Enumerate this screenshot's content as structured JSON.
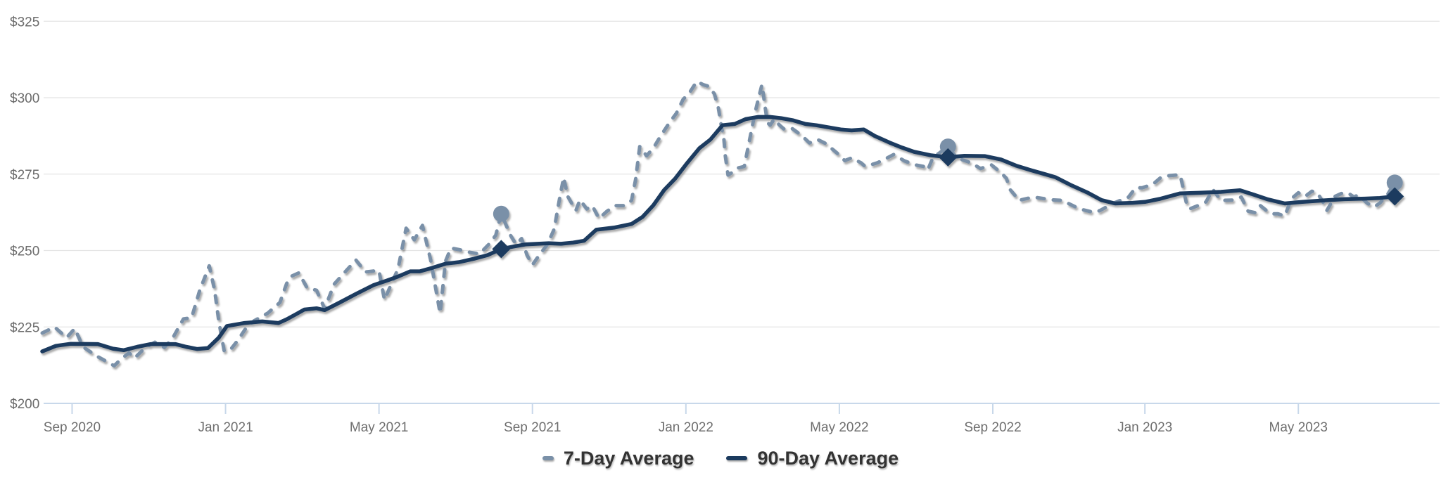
{
  "chart_data": {
    "type": "line",
    "title": "",
    "grid": true,
    "legend_position": "bottom",
    "colors": {
      "seven_day": "#7a90a8",
      "ninety_day": "#1b3a5e",
      "gridline": "#e4e4e4",
      "axis": "#c8d8ea",
      "axis_label": "#6b6b6b",
      "legend_text": "#333333"
    },
    "y_axis": {
      "min": 200,
      "max": 325,
      "step": 25,
      "tick_prefix": "$",
      "labels": [
        "$200",
        "$225",
        "$250",
        "$275",
        "$300",
        "$325"
      ]
    },
    "x_axis": {
      "tick_labels": [
        "Sep 2020",
        "Jan 2021",
        "May 2021",
        "Sep 2021",
        "Jan 2022",
        "May 2022",
        "Sep 2022",
        "Jan 2023",
        "May 2023"
      ],
      "tick_positions": [
        0.022,
        0.135,
        0.248,
        0.361,
        0.474,
        0.587,
        0.7,
        0.812,
        0.925
      ]
    },
    "series": [
      {
        "name": "7-Day Average",
        "style": "dashed",
        "color": "#7a90a8",
        "points": [
          [
            0.0,
            223
          ],
          [
            0.009,
            225
          ],
          [
            0.018,
            221.5
          ],
          [
            0.024,
            224.5
          ],
          [
            0.03,
            218.5
          ],
          [
            0.04,
            215.5
          ],
          [
            0.047,
            213.8
          ],
          [
            0.053,
            212.3
          ],
          [
            0.058,
            214.5
          ],
          [
            0.064,
            216.5
          ],
          [
            0.068,
            214.8
          ],
          [
            0.076,
            218.3
          ],
          [
            0.083,
            220
          ],
          [
            0.09,
            218.3
          ],
          [
            0.096,
            221.3
          ],
          [
            0.104,
            227.6
          ],
          [
            0.11,
            228
          ],
          [
            0.116,
            237
          ],
          [
            0.123,
            245
          ],
          [
            0.127,
            237
          ],
          [
            0.13,
            227
          ],
          [
            0.134,
            217.2
          ],
          [
            0.138,
            217.2
          ],
          [
            0.144,
            220.6
          ],
          [
            0.15,
            224.6
          ],
          [
            0.156,
            227
          ],
          [
            0.166,
            229.5
          ],
          [
            0.175,
            233
          ],
          [
            0.18,
            239.2
          ],
          [
            0.183,
            241.5
          ],
          [
            0.189,
            242.7
          ],
          [
            0.195,
            237.8
          ],
          [
            0.202,
            237
          ],
          [
            0.208,
            231
          ],
          [
            0.215,
            239
          ],
          [
            0.223,
            243
          ],
          [
            0.231,
            246.9
          ],
          [
            0.238,
            243
          ],
          [
            0.248,
            243.5
          ],
          [
            0.252,
            233.9
          ],
          [
            0.262,
            244
          ],
          [
            0.268,
            257.3
          ],
          [
            0.274,
            253.5
          ],
          [
            0.28,
            258.2
          ],
          [
            0.286,
            247
          ],
          [
            0.293,
            229.5
          ],
          [
            0.297,
            246.5
          ],
          [
            0.301,
            250.8
          ],
          [
            0.307,
            250.3
          ],
          [
            0.315,
            249.4
          ],
          [
            0.322,
            248.9
          ],
          [
            0.329,
            252.1
          ],
          [
            0.334,
            255
          ],
          [
            0.338,
            262
          ],
          [
            0.342,
            257.9
          ],
          [
            0.345,
            254.9
          ],
          [
            0.349,
            252
          ],
          [
            0.353,
            253.9
          ],
          [
            0.357,
            248.5
          ],
          [
            0.361,
            245.3
          ],
          [
            0.366,
            248.5
          ],
          [
            0.372,
            252
          ],
          [
            0.377,
            257
          ],
          [
            0.381,
            267
          ],
          [
            0.384,
            273.9
          ],
          [
            0.387,
            267.7
          ],
          [
            0.39,
            265.4
          ],
          [
            0.393,
            263.1
          ],
          [
            0.396,
            266.6
          ],
          [
            0.401,
            263.6
          ],
          [
            0.405,
            264.7
          ],
          [
            0.41,
            260.5
          ],
          [
            0.416,
            262.9
          ],
          [
            0.422,
            264.7
          ],
          [
            0.429,
            264.7
          ],
          [
            0.434,
            266.4
          ],
          [
            0.437,
            273.3
          ],
          [
            0.44,
            284
          ],
          [
            0.445,
            281
          ],
          [
            0.45,
            283.5
          ],
          [
            0.456,
            287.9
          ],
          [
            0.462,
            291.9
          ],
          [
            0.467,
            294.9
          ],
          [
            0.472,
            299.5
          ],
          [
            0.476,
            301.2
          ],
          [
            0.482,
            305.3
          ],
          [
            0.487,
            304.2
          ],
          [
            0.491,
            303.7
          ],
          [
            0.495,
            301.2
          ],
          [
            0.498,
            296.5
          ],
          [
            0.5,
            291
          ],
          [
            0.502,
            286.3
          ],
          [
            0.503,
            281
          ],
          [
            0.505,
            274.7
          ],
          [
            0.508,
            275.5
          ],
          [
            0.512,
            277
          ],
          [
            0.517,
            277.5
          ],
          [
            0.522,
            288.7
          ],
          [
            0.525,
            295.3
          ],
          [
            0.528,
            300.7
          ],
          [
            0.53,
            304.2
          ],
          [
            0.533,
            294.9
          ],
          [
            0.534,
            291.9
          ],
          [
            0.536,
            291
          ],
          [
            0.539,
            293
          ],
          [
            0.543,
            291
          ],
          [
            0.546,
            289.8
          ],
          [
            0.551,
            290.3
          ],
          [
            0.556,
            288.7
          ],
          [
            0.56,
            287.3
          ],
          [
            0.565,
            285.2
          ],
          [
            0.571,
            286.3
          ],
          [
            0.577,
            285
          ],
          [
            0.581,
            283.5
          ],
          [
            0.586,
            281.6
          ],
          [
            0.591,
            279.4
          ],
          [
            0.596,
            280.3
          ],
          [
            0.603,
            278.7
          ],
          [
            0.606,
            277.5
          ],
          [
            0.615,
            278.7
          ],
          [
            0.621,
            280
          ],
          [
            0.627,
            281.4
          ],
          [
            0.635,
            279.3
          ],
          [
            0.643,
            278
          ],
          [
            0.649,
            277.5
          ],
          [
            0.652,
            276.3
          ],
          [
            0.656,
            280.5
          ],
          [
            0.661,
            282
          ],
          [
            0.667,
            284
          ],
          [
            0.673,
            280.5
          ],
          [
            0.677,
            279.8
          ],
          [
            0.684,
            278.7
          ],
          [
            0.691,
            276.8
          ],
          [
            0.699,
            278
          ],
          [
            0.706,
            275.5
          ],
          [
            0.71,
            273.6
          ],
          [
            0.713,
            269.8
          ],
          [
            0.717,
            267.7
          ],
          [
            0.719,
            266.4
          ],
          [
            0.73,
            267.5
          ],
          [
            0.743,
            266.6
          ],
          [
            0.751,
            266.4
          ],
          [
            0.764,
            263.6
          ],
          [
            0.775,
            262.4
          ],
          [
            0.779,
            263.1
          ],
          [
            0.788,
            265.3
          ],
          [
            0.8,
            267.5
          ],
          [
            0.805,
            270.5
          ],
          [
            0.81,
            270.5
          ],
          [
            0.818,
            271.7
          ],
          [
            0.824,
            274
          ],
          [
            0.83,
            274.5
          ],
          [
            0.838,
            274.8
          ],
          [
            0.843,
            264.7
          ],
          [
            0.845,
            263.6
          ],
          [
            0.851,
            264.7
          ],
          [
            0.857,
            265.9
          ],
          [
            0.862,
            270
          ],
          [
            0.868,
            266.4
          ],
          [
            0.877,
            266.5
          ],
          [
            0.883,
            267.5
          ],
          [
            0.888,
            262.9
          ],
          [
            0.893,
            262.4
          ],
          [
            0.897,
            264.7
          ],
          [
            0.902,
            262.9
          ],
          [
            0.906,
            262
          ],
          [
            0.91,
            262
          ],
          [
            0.915,
            261.3
          ],
          [
            0.92,
            267
          ],
          [
            0.925,
            268.9
          ],
          [
            0.93,
            267.7
          ],
          [
            0.935,
            269.4
          ],
          [
            0.939,
            268.9
          ],
          [
            0.944,
            265.2
          ],
          [
            0.946,
            263.1
          ],
          [
            0.952,
            267.7
          ],
          [
            0.958,
            268.9
          ],
          [
            0.962,
            268.7
          ],
          [
            0.966,
            267.5
          ],
          [
            0.969,
            268.2
          ],
          [
            0.976,
            265.4
          ],
          [
            0.981,
            264.3
          ],
          [
            0.985,
            265.5
          ],
          [
            0.991,
            268.5
          ],
          [
            0.996,
            272.2
          ]
        ]
      },
      {
        "name": "90-Day Average",
        "style": "solid",
        "color": "#1b3a5e",
        "points": [
          [
            0.0,
            217
          ],
          [
            0.01,
            218.8
          ],
          [
            0.021,
            219.5
          ],
          [
            0.041,
            219.4
          ],
          [
            0.052,
            217.9
          ],
          [
            0.06,
            217.4
          ],
          [
            0.07,
            218.5
          ],
          [
            0.08,
            219.4
          ],
          [
            0.098,
            219.4
          ],
          [
            0.106,
            218.5
          ],
          [
            0.114,
            217.8
          ],
          [
            0.122,
            218.1
          ],
          [
            0.13,
            221.5
          ],
          [
            0.136,
            225.3
          ],
          [
            0.149,
            226.3
          ],
          [
            0.162,
            226.8
          ],
          [
            0.174,
            226.3
          ],
          [
            0.18,
            227.5
          ],
          [
            0.187,
            229.2
          ],
          [
            0.193,
            230.7
          ],
          [
            0.202,
            231.1
          ],
          [
            0.208,
            230.5
          ],
          [
            0.219,
            233
          ],
          [
            0.231,
            235.8
          ],
          [
            0.244,
            238.7
          ],
          [
            0.254,
            240.2
          ],
          [
            0.262,
            241.5
          ],
          [
            0.271,
            243.2
          ],
          [
            0.278,
            243.2
          ],
          [
            0.287,
            244.3
          ],
          [
            0.297,
            245.7
          ],
          [
            0.307,
            246.2
          ],
          [
            0.318,
            247.3
          ],
          [
            0.328,
            248.5
          ],
          [
            0.338,
            250.5
          ],
          [
            0.347,
            251.3
          ],
          [
            0.356,
            252
          ],
          [
            0.365,
            252.2
          ],
          [
            0.373,
            252.4
          ],
          [
            0.382,
            252.2
          ],
          [
            0.391,
            252.6
          ],
          [
            0.399,
            253.2
          ],
          [
            0.408,
            256.8
          ],
          [
            0.421,
            257.5
          ],
          [
            0.434,
            258.7
          ],
          [
            0.442,
            261
          ],
          [
            0.45,
            264.8
          ],
          [
            0.458,
            269.8
          ],
          [
            0.466,
            273.5
          ],
          [
            0.475,
            278.7
          ],
          [
            0.484,
            283.5
          ],
          [
            0.492,
            286.3
          ],
          [
            0.501,
            291
          ],
          [
            0.51,
            291.4
          ],
          [
            0.518,
            293
          ],
          [
            0.527,
            293.7
          ],
          [
            0.536,
            293.7
          ],
          [
            0.544,
            293.3
          ],
          [
            0.553,
            292.6
          ],
          [
            0.562,
            291.4
          ],
          [
            0.57,
            291
          ],
          [
            0.579,
            290.3
          ],
          [
            0.588,
            289.6
          ],
          [
            0.596,
            289.3
          ],
          [
            0.605,
            289.6
          ],
          [
            0.613,
            287.5
          ],
          [
            0.624,
            285.3
          ],
          [
            0.633,
            283.7
          ],
          [
            0.642,
            282.3
          ],
          [
            0.654,
            281.2
          ],
          [
            0.667,
            280.5
          ],
          [
            0.679,
            281
          ],
          [
            0.694,
            280.9
          ],
          [
            0.706,
            279.8
          ],
          [
            0.717,
            277.8
          ],
          [
            0.728,
            276.3
          ],
          [
            0.739,
            274.9
          ],
          [
            0.746,
            274
          ],
          [
            0.758,
            271.3
          ],
          [
            0.77,
            268.9
          ],
          [
            0.78,
            266.5
          ],
          [
            0.79,
            265.4
          ],
          [
            0.803,
            265.6
          ],
          [
            0.812,
            265.9
          ],
          [
            0.823,
            266.9
          ],
          [
            0.838,
            268.7
          ],
          [
            0.853,
            268.9
          ],
          [
            0.868,
            269.2
          ],
          [
            0.882,
            269.7
          ],
          [
            0.892,
            268.3
          ],
          [
            0.902,
            266.8
          ],
          [
            0.915,
            265.4
          ],
          [
            0.928,
            265.9
          ],
          [
            0.943,
            266.4
          ],
          [
            0.959,
            266.8
          ],
          [
            0.974,
            267
          ],
          [
            0.985,
            267.2
          ],
          [
            0.996,
            267.7
          ]
        ]
      }
    ],
    "markers": [
      {
        "x": 0.338,
        "seven_day": 262,
        "ninety_day": 250.5
      },
      {
        "x": 0.667,
        "seven_day": 284,
        "ninety_day": 280.5
      },
      {
        "x": 0.996,
        "seven_day": 272.2,
        "ninety_day": 267.7
      }
    ],
    "legend": {
      "items": [
        {
          "label": "7-Day Average",
          "color": "#7a90a8"
        },
        {
          "label": "90-Day Average",
          "color": "#1b3a5e"
        }
      ]
    }
  }
}
